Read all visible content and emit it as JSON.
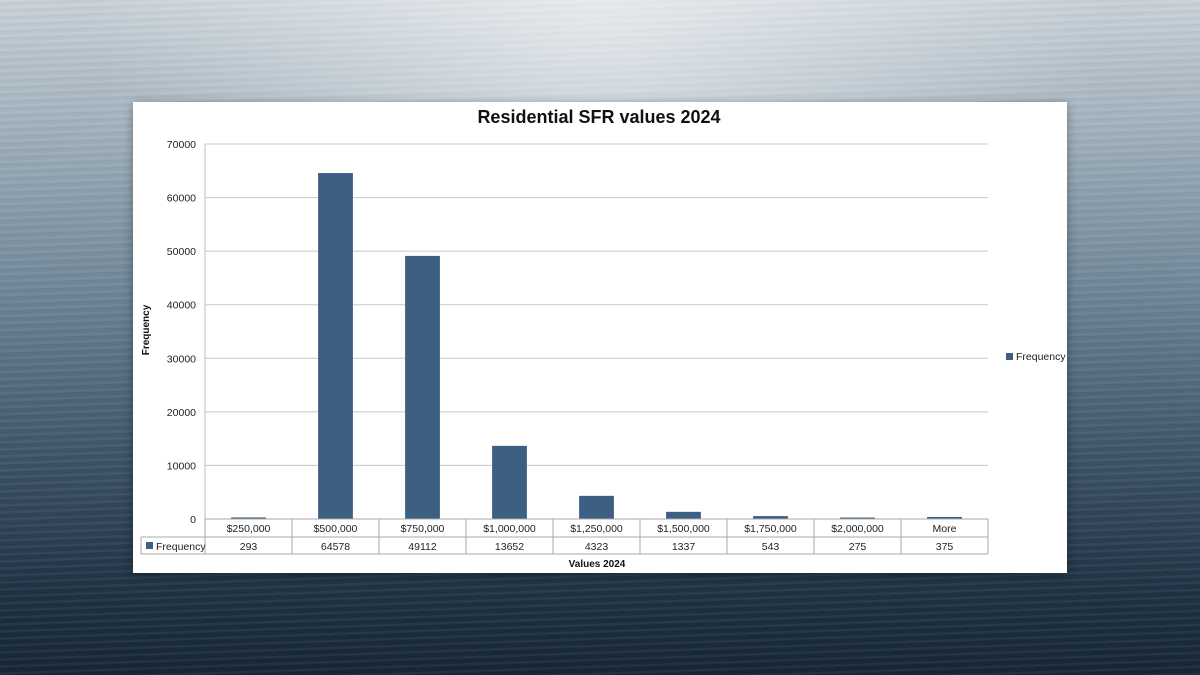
{
  "chart_data": {
    "type": "bar",
    "title": "Residential SFR values 2024",
    "xlabel": "Values 2024",
    "ylabel": "Frequency",
    "categories": [
      "$250,000",
      "$500,000",
      "$750,000",
      "$1,000,000",
      "$1,250,000",
      "$1,500,000",
      "$1,750,000",
      "$2,000,000",
      "More"
    ],
    "series": [
      {
        "name": "Frequency",
        "values": [
          293,
          64578,
          49112,
          13652,
          4323,
          1337,
          543,
          275,
          375
        ],
        "color": "#3c5f82"
      }
    ],
    "ylim": [
      0,
      70000
    ],
    "yticks": [
      0,
      10000,
      20000,
      30000,
      40000,
      50000,
      60000,
      70000
    ],
    "grid": true,
    "legend": "right",
    "data_table": true
  }
}
